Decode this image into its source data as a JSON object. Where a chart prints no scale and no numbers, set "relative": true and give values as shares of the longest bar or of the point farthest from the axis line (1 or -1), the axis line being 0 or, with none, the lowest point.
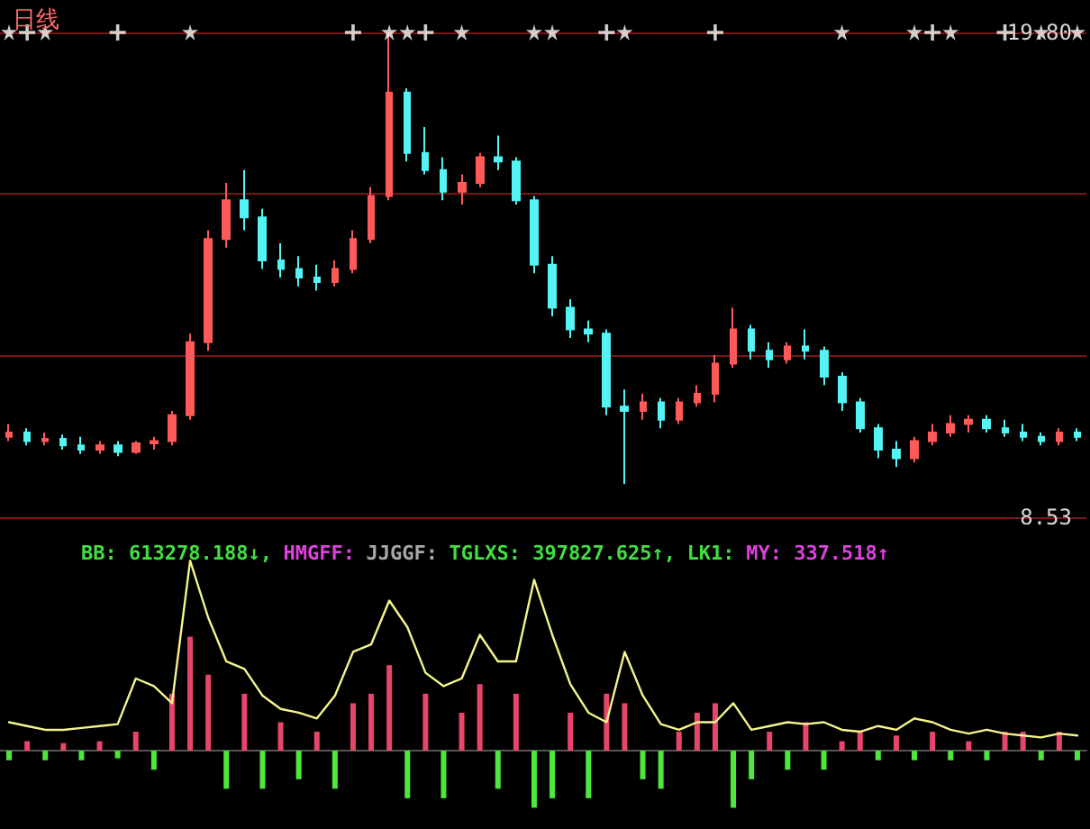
{
  "chart_data": [
    {
      "type": "candlestick",
      "title": "日线",
      "tick_labels": "y",
      "grid": "y",
      "categories": [
        null,
        null,
        null,
        null,
        null,
        null,
        null,
        null,
        null,
        null,
        null,
        null,
        null,
        null,
        null,
        null,
        null,
        null,
        null,
        null,
        null,
        null,
        null,
        null,
        null,
        null,
        null,
        null,
        null,
        null,
        null,
        null,
        null,
        null,
        null,
        null,
        null,
        null,
        null,
        null,
        null,
        null,
        null,
        null,
        null,
        null,
        null,
        null,
        null,
        null,
        null,
        null,
        null,
        null,
        null,
        null,
        null,
        null,
        null,
        null
      ],
      "ylim": [
        8.53,
        19.8
      ],
      "yticks": [
        {
          "value": 8.53,
          "label": "8.53"
        },
        {
          "value": 12.29,
          "label": null
        },
        {
          "value": 16.04,
          "label": null
        },
        {
          "value": 19.8,
          "label": "19.80"
        }
      ],
      "ohlc": [
        [
          10.4,
          10.7,
          10.3,
          10.5
        ],
        [
          10.5,
          10.6,
          10.2,
          10.3
        ],
        [
          10.3,
          10.5,
          10.2,
          10.35
        ],
        [
          10.35,
          10.45,
          10.1,
          10.2
        ],
        [
          10.2,
          10.4,
          10.0,
          10.1
        ],
        [
          10.1,
          10.3,
          10.0,
          10.2
        ],
        [
          10.2,
          10.3,
          9.95,
          10.05
        ],
        [
          10.05,
          10.3,
          10.0,
          10.25
        ],
        [
          10.25,
          10.4,
          10.1,
          10.3
        ],
        [
          10.3,
          11.0,
          10.2,
          10.9
        ],
        [
          10.9,
          12.8,
          10.8,
          12.6
        ],
        [
          12.6,
          15.2,
          12.4,
          15.0
        ],
        [
          15.0,
          16.3,
          14.8,
          15.9
        ],
        [
          15.9,
          16.6,
          15.2,
          15.5
        ],
        [
          15.5,
          15.7,
          14.3,
          14.5
        ],
        [
          14.5,
          14.9,
          14.1,
          14.3
        ],
        [
          14.3,
          14.6,
          13.9,
          14.1
        ],
        [
          14.1,
          14.4,
          13.8,
          14.0
        ],
        [
          14.0,
          14.5,
          13.9,
          14.3
        ],
        [
          14.3,
          15.2,
          14.2,
          15.0
        ],
        [
          15.0,
          16.2,
          14.9,
          16.0
        ],
        [
          16.0,
          19.8,
          15.9,
          18.4
        ],
        [
          18.4,
          18.5,
          16.8,
          17.0
        ],
        [
          17.0,
          17.6,
          16.5,
          16.6
        ],
        [
          16.6,
          16.9,
          15.9,
          16.1
        ],
        [
          16.1,
          16.5,
          15.8,
          16.3
        ],
        [
          16.3,
          17.0,
          16.2,
          16.9
        ],
        [
          16.9,
          17.4,
          16.6,
          16.8
        ],
        [
          16.8,
          16.9,
          15.8,
          15.9
        ],
        [
          15.9,
          16.0,
          14.2,
          14.4
        ],
        [
          14.4,
          14.6,
          13.2,
          13.4
        ],
        [
          13.4,
          13.6,
          12.7,
          12.9
        ],
        [
          12.9,
          13.1,
          12.6,
          12.8
        ],
        [
          12.8,
          12.9,
          10.9,
          11.1
        ],
        [
          11.1,
          11.5,
          9.3,
          11.0
        ],
        [
          11.0,
          11.4,
          10.8,
          11.2
        ],
        [
          11.2,
          11.3,
          10.6,
          10.8
        ],
        [
          10.8,
          11.3,
          10.7,
          11.2
        ],
        [
          11.2,
          11.6,
          11.1,
          11.4
        ],
        [
          11.4,
          12.3,
          11.2,
          12.1
        ],
        [
          12.1,
          13.4,
          12.0,
          12.9
        ],
        [
          12.9,
          13.0,
          12.2,
          12.4
        ],
        [
          12.4,
          12.6,
          12.0,
          12.2
        ],
        [
          12.2,
          12.6,
          12.1,
          12.5
        ],
        [
          12.5,
          12.9,
          12.2,
          12.4
        ],
        [
          12.4,
          12.5,
          11.6,
          11.8
        ],
        [
          11.8,
          11.9,
          11.0,
          11.2
        ],
        [
          11.2,
          11.3,
          10.5,
          10.6
        ],
        [
          10.6,
          10.7,
          9.9,
          10.1
        ],
        [
          10.1,
          10.3,
          9.7,
          9.9
        ],
        [
          9.9,
          10.4,
          9.8,
          10.3
        ],
        [
          10.3,
          10.7,
          10.2,
          10.5
        ],
        [
          10.5,
          10.9,
          10.4,
          10.7
        ],
        [
          10.7,
          10.9,
          10.5,
          10.8
        ],
        [
          10.8,
          10.9,
          10.5,
          10.6
        ],
        [
          10.6,
          10.8,
          10.4,
          10.5
        ],
        [
          10.5,
          10.7,
          10.3,
          10.4
        ],
        [
          10.4,
          10.5,
          10.2,
          10.3
        ],
        [
          10.3,
          10.6,
          10.2,
          10.5
        ],
        [
          10.5,
          10.6,
          10.3,
          10.4
        ]
      ],
      "series": [
        {
          "type": "scatter",
          "marker": "star",
          "color": "#ffffff",
          "values": [
            19.8,
            null,
            19.8,
            null,
            null,
            null,
            null,
            null,
            null,
            null,
            19.8,
            null,
            null,
            null,
            null,
            null,
            null,
            null,
            null,
            null,
            null,
            19.8,
            19.8,
            null,
            null,
            19.8,
            null,
            null,
            null,
            19.8,
            19.8,
            null,
            null,
            null,
            19.8,
            null,
            null,
            null,
            null,
            null,
            null,
            null,
            null,
            null,
            null,
            null,
            19.8,
            null,
            null,
            null,
            19.8,
            null,
            19.8,
            null,
            null,
            null,
            null,
            19.8,
            null,
            19.8
          ]
        },
        {
          "type": "scatter",
          "marker": "cross",
          "color": "#ffffff",
          "values": [
            null,
            19.8,
            null,
            null,
            null,
            null,
            19.8,
            null,
            null,
            null,
            null,
            null,
            null,
            null,
            null,
            null,
            null,
            null,
            null,
            19.8,
            null,
            null,
            null,
            19.8,
            null,
            null,
            null,
            null,
            null,
            null,
            null,
            null,
            null,
            19.8,
            null,
            null,
            null,
            null,
            null,
            19.8,
            null,
            null,
            null,
            null,
            null,
            null,
            null,
            null,
            null,
            null,
            null,
            19.8,
            null,
            null,
            null,
            19.8,
            null,
            null,
            null,
            null
          ]
        }
      ]
    },
    {
      "type": "line",
      "relative": true,
      "categories": [
        null,
        null,
        null,
        null,
        null,
        null,
        null,
        null,
        null,
        null,
        null,
        null,
        null,
        null,
        null,
        null,
        null,
        null,
        null,
        null,
        null,
        null,
        null,
        null,
        null,
        null,
        null,
        null,
        null,
        null,
        null,
        null,
        null,
        null,
        null,
        null,
        null,
        null,
        null,
        null,
        null,
        null,
        null,
        null,
        null,
        null,
        null,
        null,
        null,
        null,
        null,
        null,
        null,
        null,
        null,
        null,
        null,
        null,
        null,
        null
      ],
      "annotations": [
        "BB: 613278.188↓,",
        "HMGFF:",
        "JJGGF:",
        "TGLXS: 397827.625↑,",
        "LK1:",
        "MY: 337.518↑"
      ],
      "series": [
        {
          "type": "line",
          "color": "#f4f48c",
          "values": [
            0.15,
            0.13,
            0.11,
            0.11,
            0.12,
            0.13,
            0.14,
            0.38,
            0.34,
            0.25,
            1.0,
            0.7,
            0.47,
            0.43,
            0.29,
            0.22,
            0.2,
            0.17,
            0.29,
            0.52,
            0.56,
            0.79,
            0.65,
            0.41,
            0.34,
            0.38,
            0.61,
            0.47,
            0.47,
            0.9,
            0.61,
            0.35,
            0.2,
            0.15,
            0.52,
            0.29,
            0.14,
            0.11,
            0.15,
            0.15,
            0.25,
            0.11,
            0.13,
            0.15,
            0.14,
            0.15,
            0.11,
            0.1,
            0.13,
            0.11,
            0.17,
            0.15,
            0.11,
            0.09,
            0.11,
            0.09,
            0.08,
            0.07,
            0.09,
            0.08
          ]
        },
        {
          "type": "bar",
          "color": "#e8456a",
          "values": [
            null,
            0.05,
            null,
            0.04,
            null,
            0.05,
            null,
            0.1,
            null,
            0.3,
            0.6,
            0.4,
            null,
            0.3,
            null,
            0.15,
            null,
            0.1,
            null,
            0.25,
            0.3,
            0.45,
            null,
            0.3,
            null,
            0.2,
            0.35,
            null,
            0.3,
            null,
            null,
            0.2,
            null,
            0.3,
            0.25,
            null,
            null,
            0.1,
            0.2,
            0.25,
            null,
            null,
            0.1,
            null,
            0.15,
            null,
            0.05,
            0.1,
            null,
            0.08,
            null,
            0.1,
            null,
            0.05,
            null,
            0.1,
            0.1,
            null,
            0.1,
            null
          ]
        },
        {
          "type": "bar",
          "color": "#4ee83c",
          "values": [
            -0.05,
            null,
            -0.05,
            null,
            -0.05,
            null,
            -0.04,
            null,
            -0.1,
            null,
            null,
            null,
            -0.2,
            null,
            -0.2,
            null,
            -0.15,
            null,
            -0.2,
            null,
            null,
            null,
            -0.25,
            null,
            -0.25,
            null,
            null,
            -0.2,
            null,
            -0.3,
            -0.25,
            null,
            -0.25,
            null,
            null,
            -0.15,
            -0.2,
            null,
            null,
            null,
            -0.3,
            -0.15,
            null,
            -0.1,
            null,
            -0.1,
            null,
            null,
            -0.05,
            null,
            -0.05,
            null,
            -0.05,
            null,
            -0.05,
            null,
            null,
            -0.05,
            null,
            -0.05
          ]
        }
      ]
    }
  ]
}
